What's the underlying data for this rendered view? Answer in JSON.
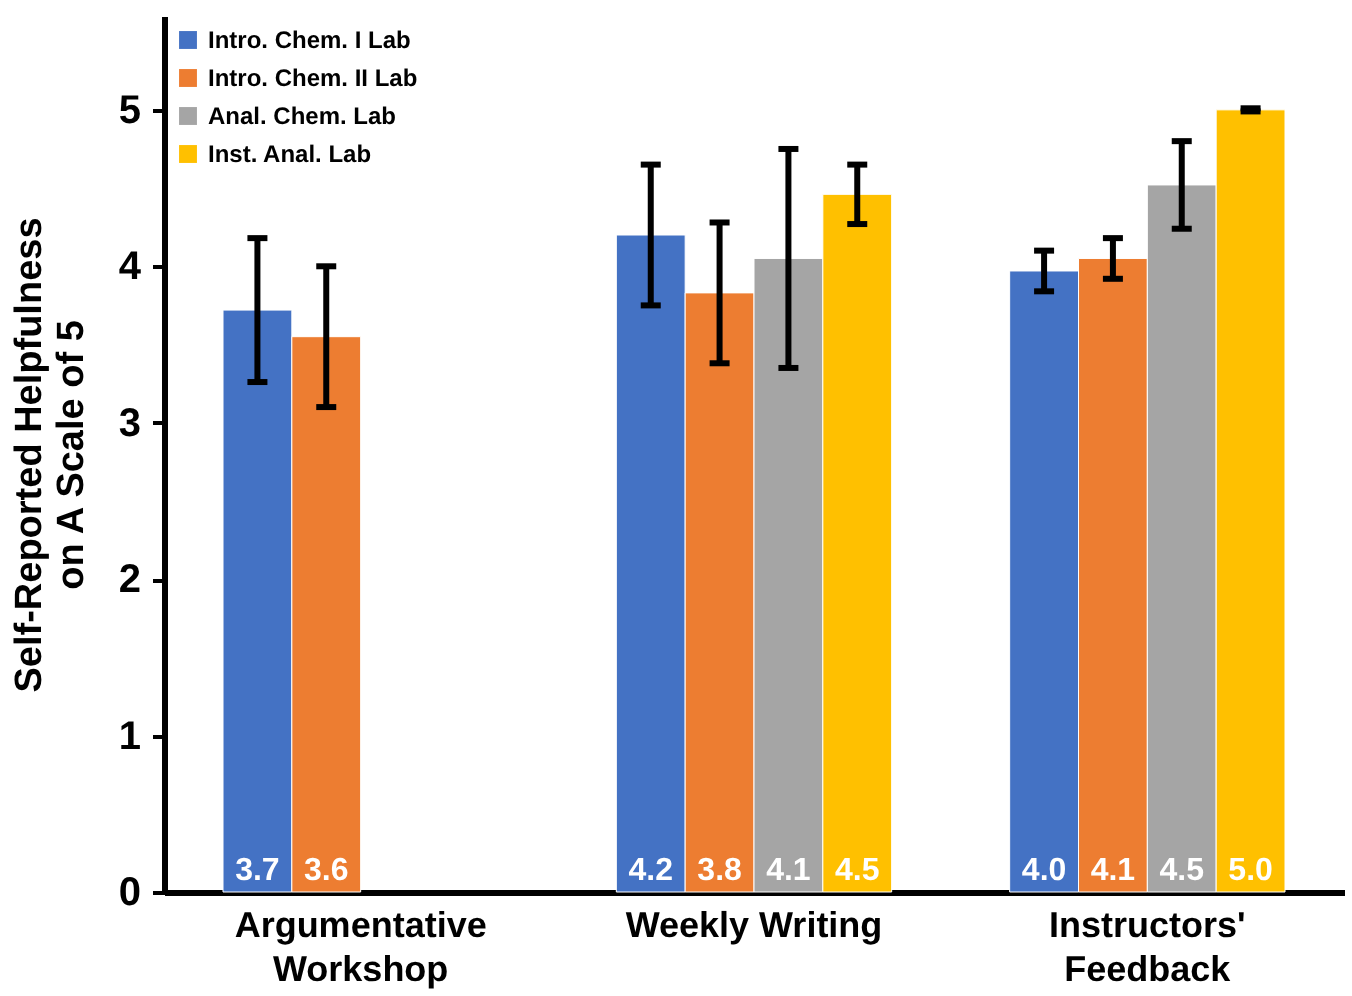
{
  "chart_data": {
    "type": "bar",
    "ylabel": "Self-Reported Helpfulness on A Scale of 5",
    "categories": [
      "Argumentative Workshop",
      "Weekly Writing",
      "Instructors' Feedback"
    ],
    "series": [
      {
        "name": "Intro. Chem. I Lab",
        "color": "#4472c4",
        "values": [
          3.72,
          4.2,
          3.97
        ],
        "errors": [
          0.46,
          0.45,
          0.13
        ],
        "value_labels": [
          "3.7",
          "4.2",
          "4.0"
        ]
      },
      {
        "name": "Intro. Chem. II Lab",
        "color": "#ed7d31",
        "values": [
          3.55,
          3.83,
          4.05
        ],
        "errors": [
          0.45,
          0.45,
          0.13
        ],
        "value_labels": [
          "3.6",
          "3.8",
          "4.1"
        ]
      },
      {
        "name": "Anal. Chem. Lab",
        "color": "#a5a5a5",
        "values": [
          null,
          4.05,
          4.52
        ],
        "errors": [
          null,
          0.7,
          0.28
        ],
        "value_labels": [
          null,
          "4.1",
          "4.5"
        ]
      },
      {
        "name": "Inst. Anal. Lab",
        "color": "#ffc000",
        "values": [
          null,
          4.46,
          5.0
        ],
        "errors": [
          null,
          0.19,
          0.01
        ],
        "value_labels": [
          null,
          "4.5",
          "5.0"
        ]
      }
    ],
    "ylim": [
      0,
      5.6
    ],
    "yticks": [
      0,
      1,
      2,
      3,
      4,
      5
    ],
    "legend": "top left"
  }
}
